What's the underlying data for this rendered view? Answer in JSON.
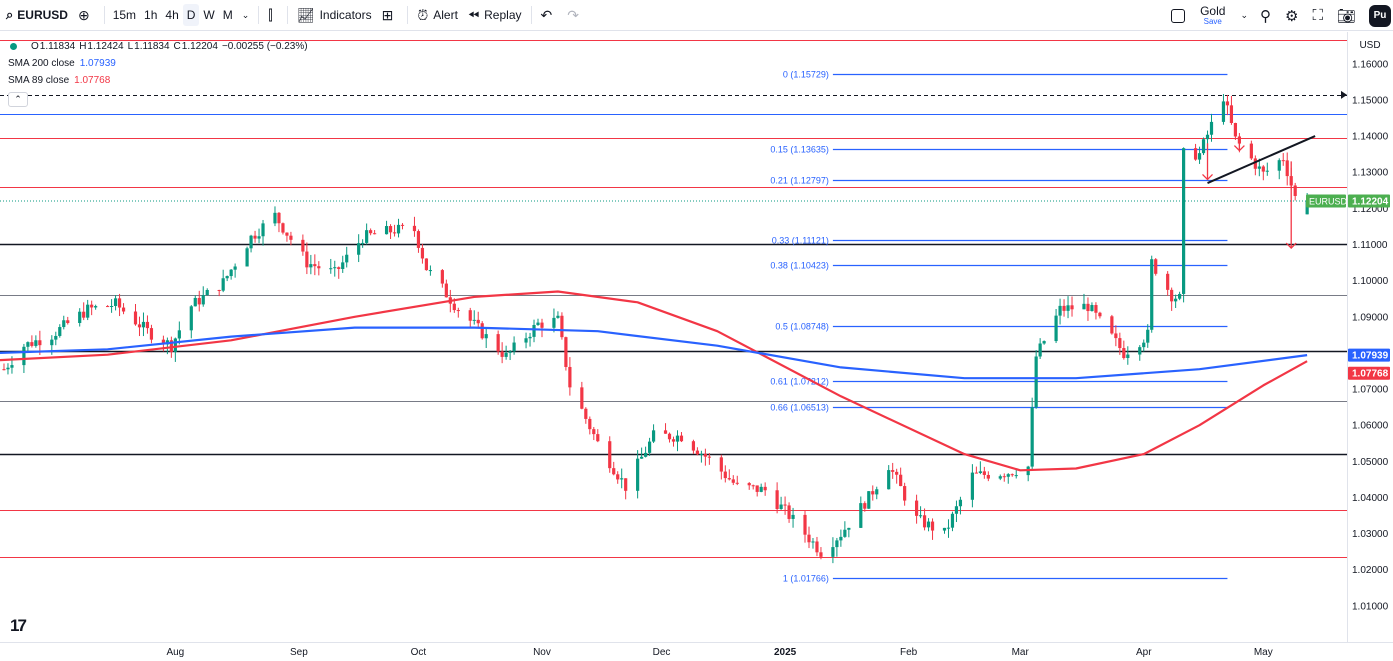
{
  "toolbar": {
    "symbol": "EURUSD",
    "timeframes": [
      "15m",
      "1h",
      "4h",
      "D",
      "W",
      "M"
    ],
    "active_timeframe": "D",
    "indicators_label": "Indicators",
    "alert_label": "Alert",
    "replay_label": "Replay",
    "gold_label": "Gold",
    "save_label": "Save",
    "profile_initials": "Pu"
  },
  "legend": {
    "ohlc": [
      {
        "label": "O",
        "value": "1.11834"
      },
      {
        "label": "H",
        "value": "1.12424"
      },
      {
        "label": "L",
        "value": "1.11834"
      },
      {
        "label": "C",
        "value": "1.12204"
      }
    ],
    "change": "−0.00255 (−0.23%)",
    "sma200": {
      "label": "SMA 200 close",
      "value": "1.07939",
      "color": "#2962ff"
    },
    "sma89": {
      "label": "SMA 89 close",
      "value": "1.07768",
      "color": "#f23645"
    }
  },
  "currency": "USD",
  "colors": {
    "up": "#089981",
    "down": "#f23645",
    "sma200": "#2962ff",
    "sma89": "#f23645",
    "fib": "#2962ff"
  },
  "chart_data": {
    "type": "candlestick",
    "symbol": "EURUSD",
    "last_price": 1.12204,
    "last_price_label": "1.12204",
    "y_ticks": [
      1.16,
      1.15,
      1.14,
      1.13,
      1.12,
      1.11,
      1.1,
      1.09,
      1.08,
      1.07,
      1.06,
      1.05,
      1.04,
      1.03,
      1.02,
      1.01
    ],
    "y_tick_labels": [
      "1.16000",
      "1.15000",
      "1.14000",
      "1.13000",
      "1.12000",
      "1.11000",
      "1.10000",
      "1.09000",
      "1.08000",
      "1.07000",
      "1.06000",
      "1.05000",
      "1.04000",
      "1.03000",
      "1.02000",
      "1.01000"
    ],
    "ylim": [
      1.0,
      1.1688
    ],
    "x_range": [
      "2024-06-18",
      "2025-05-22"
    ],
    "x_ticks": [
      {
        "label": "Aug",
        "date": "2024-08-01"
      },
      {
        "label": "Sep",
        "date": "2024-09-01"
      },
      {
        "label": "Oct",
        "date": "2024-10-01"
      },
      {
        "label": "Nov",
        "date": "2024-11-01"
      },
      {
        "label": "Dec",
        "date": "2024-12-01"
      },
      {
        "label": "2025",
        "date": "2025-01-01",
        "bold": true
      },
      {
        "label": "Feb",
        "date": "2025-02-01"
      },
      {
        "label": "Mar",
        "date": "2025-03-01"
      },
      {
        "label": "Apr",
        "date": "2025-04-01"
      },
      {
        "label": "May",
        "date": "2025-05-01"
      }
    ],
    "close_path": [
      [
        "2024-06-19",
        1.0755
      ],
      [
        "2024-06-24",
        1.082
      ],
      [
        "2024-07-01",
        1.085
      ],
      [
        "2024-07-10",
        1.092
      ],
      [
        "2024-07-17",
        1.0935
      ],
      [
        "2024-07-25",
        1.086
      ],
      [
        "2024-07-31",
        1.082
      ],
      [
        "2024-08-05",
        1.093
      ],
      [
        "2024-08-13",
        1.0995
      ],
      [
        "2024-08-20",
        1.112
      ],
      [
        "2024-08-26",
        1.118
      ],
      [
        "2024-09-03",
        1.105
      ],
      [
        "2024-09-10",
        1.102
      ],
      [
        "2024-09-17",
        1.112
      ],
      [
        "2024-09-25",
        1.114
      ],
      [
        "2024-09-30",
        1.114
      ],
      [
        "2024-10-03",
        1.1035
      ],
      [
        "2024-10-10",
        1.0935
      ],
      [
        "2024-10-17",
        1.0855
      ],
      [
        "2024-10-23",
        1.079
      ],
      [
        "2024-10-31",
        1.088
      ],
      [
        "2024-11-05",
        1.089
      ],
      [
        "2024-11-08",
        1.071
      ],
      [
        "2024-11-15",
        1.055
      ],
      [
        "2024-11-22",
        1.043
      ],
      [
        "2024-11-29",
        1.057
      ],
      [
        "2024-12-06",
        1.057
      ],
      [
        "2024-12-13",
        1.0505
      ],
      [
        "2024-12-20",
        1.043
      ],
      [
        "2024-12-27",
        1.042
      ],
      [
        "2025-01-02",
        1.035
      ],
      [
        "2025-01-10",
        1.025
      ],
      [
        "2025-01-15",
        1.03
      ],
      [
        "2025-01-22",
        1.04
      ],
      [
        "2025-01-27",
        1.049
      ],
      [
        "2025-02-03",
        1.034
      ],
      [
        "2025-02-10",
        1.03
      ],
      [
        "2025-02-17",
        1.046
      ],
      [
        "2025-02-26",
        1.047
      ],
      [
        "2025-03-03",
        1.0485
      ],
      [
        "2025-03-05",
        1.079
      ],
      [
        "2025-03-11",
        1.092
      ],
      [
        "2025-03-18",
        1.093
      ],
      [
        "2025-03-27",
        1.08
      ],
      [
        "2025-04-02",
        1.085
      ],
      [
        "2025-04-03",
        1.105
      ],
      [
        "2025-04-08",
        1.096
      ],
      [
        "2025-04-10",
        1.095
      ],
      [
        "2025-04-11",
        1.135
      ],
      [
        "2025-04-15",
        1.135
      ],
      [
        "2025-04-21",
        1.151
      ],
      [
        "2025-04-24",
        1.139
      ],
      [
        "2025-05-01",
        1.1295
      ],
      [
        "2025-05-06",
        1.134
      ],
      [
        "2025-05-09",
        1.123
      ],
      [
        "2025-05-12",
        1.12
      ]
    ],
    "sma200": [
      [
        "2024-06-18",
        1.08
      ],
      [
        "2024-07-15",
        1.081
      ],
      [
        "2024-08-15",
        1.0845
      ],
      [
        "2024-09-15",
        1.087
      ],
      [
        "2024-10-15",
        1.087
      ],
      [
        "2024-11-15",
        1.086
      ],
      [
        "2024-12-15",
        1.082
      ],
      [
        "2025-01-15",
        1.076
      ],
      [
        "2025-02-15",
        1.073
      ],
      [
        "2025-03-15",
        1.073
      ],
      [
        "2025-04-15",
        1.0755
      ],
      [
        "2025-05-12",
        1.0794
      ]
    ],
    "sma89": [
      [
        "2024-06-18",
        1.078
      ],
      [
        "2024-07-15",
        1.0795
      ],
      [
        "2024-08-15",
        1.0835
      ],
      [
        "2024-09-15",
        1.09
      ],
      [
        "2024-10-15",
        1.0955
      ],
      [
        "2024-11-05",
        1.097
      ],
      [
        "2024-11-25",
        1.094
      ],
      [
        "2024-12-15",
        1.086
      ],
      [
        "2025-01-15",
        1.068
      ],
      [
        "2025-02-15",
        1.052
      ],
      [
        "2025-03-01",
        1.0475
      ],
      [
        "2025-03-15",
        1.048
      ],
      [
        "2025-04-01",
        1.052
      ],
      [
        "2025-04-15",
        1.06
      ],
      [
        "2025-05-01",
        1.071
      ],
      [
        "2025-05-12",
        1.0777
      ]
    ],
    "sma200_label": "1.07939",
    "sma89_label": "1.07768",
    "horizontal_lines": [
      {
        "price": 1.1665,
        "color": "#f23645",
        "style": "solid"
      },
      {
        "price": 1.1514,
        "color": "#131722",
        "style": "dashed"
      },
      {
        "price": 1.146,
        "color": "#2962ff",
        "style": "solid"
      },
      {
        "price": 1.1395,
        "color": "#f23645",
        "style": "solid"
      },
      {
        "price": 1.126,
        "color": "#f23645",
        "style": "solid"
      },
      {
        "price": 1.11,
        "color": "#131722",
        "style": "solid"
      },
      {
        "price": 1.096,
        "color": "#787b86",
        "style": "solid"
      },
      {
        "price": 1.0805,
        "color": "#131722",
        "style": "solid"
      },
      {
        "price": 1.0668,
        "color": "#787b86",
        "style": "solid"
      },
      {
        "price": 1.052,
        "color": "#131722",
        "style": "solid"
      },
      {
        "price": 1.0365,
        "color": "#f23645",
        "style": "solid"
      },
      {
        "price": 1.0235,
        "color": "#f23645",
        "style": "solid"
      }
    ],
    "fibonacci": {
      "start_date": "2025-01-13",
      "end_date": "2025-04-22",
      "levels": [
        {
          "label": "0 (1.15729)",
          "price": 1.15729
        },
        {
          "label": "0.15 (1.13635)",
          "price": 1.13635
        },
        {
          "label": "0.21 (1.12797)",
          "price": 1.12797
        },
        {
          "label": "0.33 (1.11121)",
          "price": 1.11121
        },
        {
          "label": "0.38 (1.10423)",
          "price": 1.10423
        },
        {
          "label": "0.5 (1.08748)",
          "price": 1.08748
        },
        {
          "label": "0.61 (1.07212)",
          "price": 1.07212
        },
        {
          "label": "0.66 (1.06513)",
          "price": 1.06513
        },
        {
          "label": "1 (1.01766)",
          "price": 1.01766
        }
      ]
    },
    "trendline": {
      "start": [
        "2025-04-17",
        1.127
      ],
      "end": [
        "2025-05-14",
        1.14
      ]
    },
    "arrows": [
      {
        "from": [
          "2025-04-17",
          1.138
        ],
        "to": [
          "2025-04-17",
          1.128
        ]
      },
      {
        "from": [
          "2025-04-25",
          1.139
        ],
        "to": [
          "2025-04-25",
          1.136
        ]
      },
      {
        "from": [
          "2025-05-08",
          1.133
        ],
        "to": [
          "2025-05-08",
          1.109
        ]
      }
    ]
  }
}
